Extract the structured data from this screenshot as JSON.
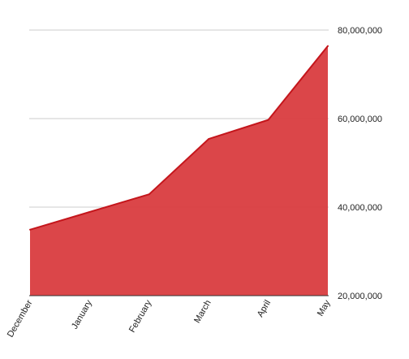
{
  "chart_data": {
    "type": "area",
    "categories": [
      "December",
      "January",
      "February",
      "March",
      "April",
      "May"
    ],
    "series": [
      {
        "values": [
          34900000,
          38900000,
          42900000,
          55400000,
          59700000,
          76400000
        ],
        "color": "#d93c3f",
        "line_color": "#c4161c"
      }
    ],
    "ylim": [
      20000000,
      80000000
    ],
    "yticks": [
      20000000,
      40000000,
      60000000,
      80000000
    ],
    "ytick_labels": [
      "20,000,000",
      "40,000,000",
      "60,000,000",
      "80,000,000"
    ],
    "y_axis_position": "right",
    "x_tick_label_rotation": "-60 degrees",
    "grid": true,
    "gridline_color": "#cccccc",
    "legend": false
  }
}
